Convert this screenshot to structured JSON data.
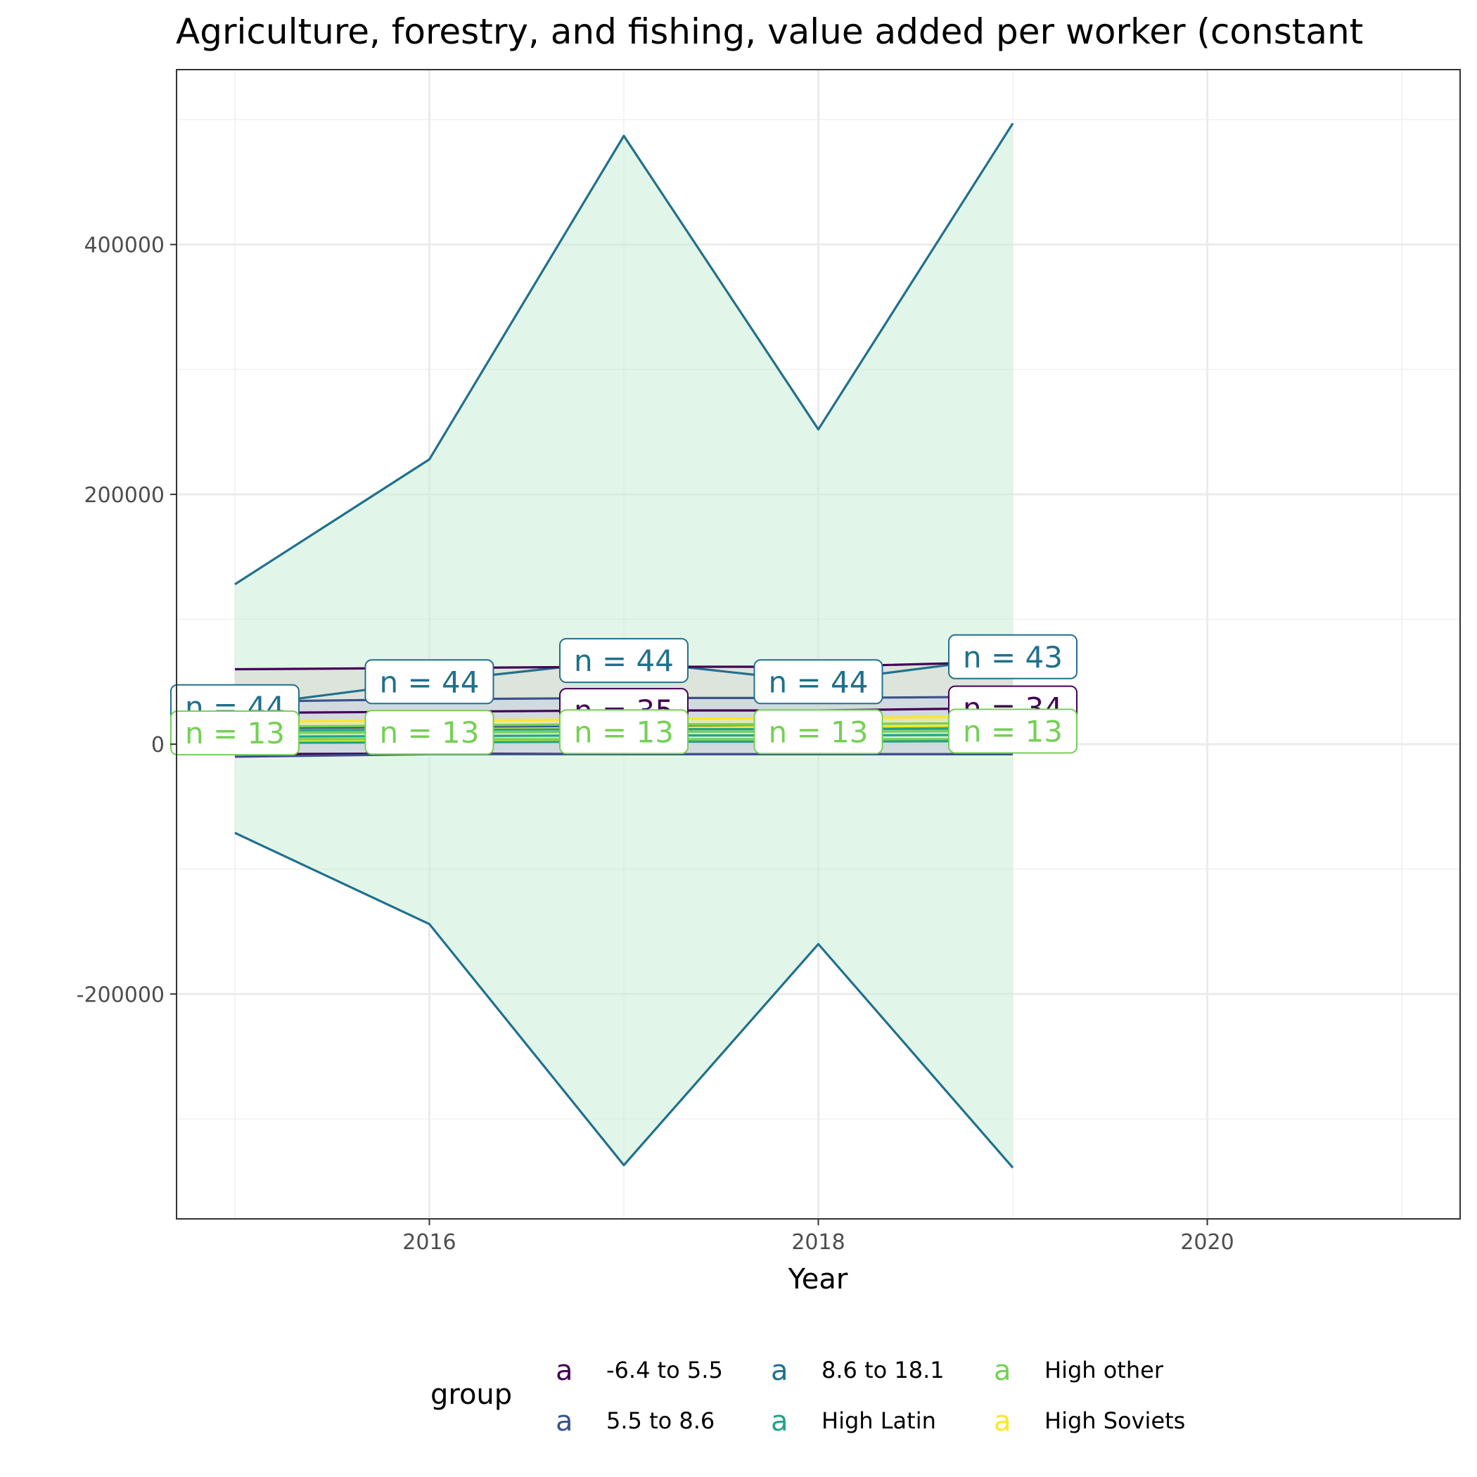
{
  "chart_data": {
    "type": "line",
    "title": "Agriculture, forestry, and fishing, value added per worker (constant",
    "xlabel": "Year",
    "ylabel": "",
    "xlim": [
      2014.7,
      2021.3
    ],
    "ylim": [
      -380000,
      540000
    ],
    "x_ticks": [
      2016,
      2018,
      2020
    ],
    "y_ticks": [
      -200000,
      0,
      200000,
      400000
    ],
    "x_tick_labels": [
      "2016",
      "2018",
      "2020"
    ],
    "y_tick_labels": [
      "-200000",
      "0",
      "200000",
      "400000"
    ],
    "grid": true,
    "legend_title": "group",
    "legend_position": "bottom",
    "series": [
      {
        "name": "-6.4 to 5.5",
        "color": "#440154",
        "fill": "#d8d6cf",
        "x": [
          2015,
          2016,
          2017,
          2018,
          2019
        ],
        "mean": [
          25000,
          26000,
          27000,
          27000,
          29000
        ],
        "upper": [
          60000,
          61000,
          62000,
          62000,
          66000
        ],
        "lower": [
          -8000,
          -7500,
          -8000,
          -8000,
          -8000
        ]
      },
      {
        "name": "5.5 to 8.6",
        "color": "#3b528b",
        "fill": "#c9d2e2",
        "x": [
          2015,
          2016,
          2017,
          2018,
          2019
        ],
        "mean": [
          13000,
          13500,
          14000,
          14000,
          14500
        ],
        "upper": [
          34000,
          36000,
          37000,
          37000,
          38000
        ],
        "lower": [
          -10000,
          -8000,
          -8000,
          -8000,
          -8000
        ]
      },
      {
        "name": "8.6 to 18.1",
        "color": "#21708c",
        "fill": "#c8eed7",
        "x": [
          2015,
          2016,
          2017,
          2018,
          2019
        ],
        "mean": [
          30000,
          50000,
          67000,
          50000,
          70000
        ],
        "upper": [
          128000,
          228000,
          487000,
          252000,
          497000
        ],
        "lower": [
          -71000,
          -144000,
          -337000,
          -160000,
          -339000
        ]
      },
      {
        "name": "High Latin",
        "color": "#20a386",
        "fill": "#c5ecdc",
        "x": [
          2015,
          2016,
          2017,
          2018,
          2019
        ],
        "mean": [
          6000,
          6500,
          7000,
          7000,
          7500
        ],
        "upper": [
          11000,
          11500,
          12000,
          12000,
          12500
        ],
        "lower": [
          1000,
          1500,
          2000,
          2000,
          2500
        ]
      },
      {
        "name": "High other",
        "color": "#74d055",
        "fill": "#dcf2d0",
        "x": [
          2015,
          2016,
          2017,
          2018,
          2019
        ],
        "mean": [
          9000,
          9500,
          10000,
          10000,
          10500
        ],
        "upper": [
          14000,
          15000,
          16000,
          16000,
          17000
        ],
        "lower": [
          4000,
          4000,
          4000,
          4000,
          4000
        ]
      },
      {
        "name": "High Soviets",
        "color": "#fde725",
        "fill": "#f4ef9a",
        "x": [
          2015,
          2016,
          2017,
          2018,
          2019
        ],
        "mean": [
          11000,
          12000,
          13000,
          14000,
          15000
        ],
        "upper": [
          18000,
          19000,
          20000,
          21000,
          22000
        ],
        "lower": [
          2000,
          2500,
          3000,
          3500,
          4000
        ]
      }
    ],
    "annotations": [
      {
        "text": "n = 44",
        "x": 2015,
        "y": 30000,
        "series": "8.6 to 18.1"
      },
      {
        "text": "n = 44",
        "x": 2016,
        "y": 50000,
        "series": "8.6 to 18.1"
      },
      {
        "text": "n = 44",
        "x": 2017,
        "y": 67000,
        "series": "8.6 to 18.1"
      },
      {
        "text": "n = 44",
        "x": 2018,
        "y": 50000,
        "series": "8.6 to 18.1"
      },
      {
        "text": "n = 43",
        "x": 2019,
        "y": 70000,
        "series": "8.6 to 18.1"
      },
      {
        "text": "n = 35",
        "x": 2017,
        "y": 27000,
        "series": "-6.4 to 5.5"
      },
      {
        "text": "n = 34",
        "x": 2019,
        "y": 29000,
        "series": "-6.4 to 5.5"
      },
      {
        "text": "n = 13",
        "x": 2015,
        "y": 9000,
        "series": "High other"
      },
      {
        "text": "n = 13",
        "x": 2016,
        "y": 9500,
        "series": "High other"
      },
      {
        "text": "n = 13",
        "x": 2017,
        "y": 10000,
        "series": "High other"
      },
      {
        "text": "n = 13",
        "x": 2018,
        "y": 10000,
        "series": "High other"
      },
      {
        "text": "n = 13",
        "x": 2019,
        "y": 10500,
        "series": "High other"
      }
    ]
  }
}
